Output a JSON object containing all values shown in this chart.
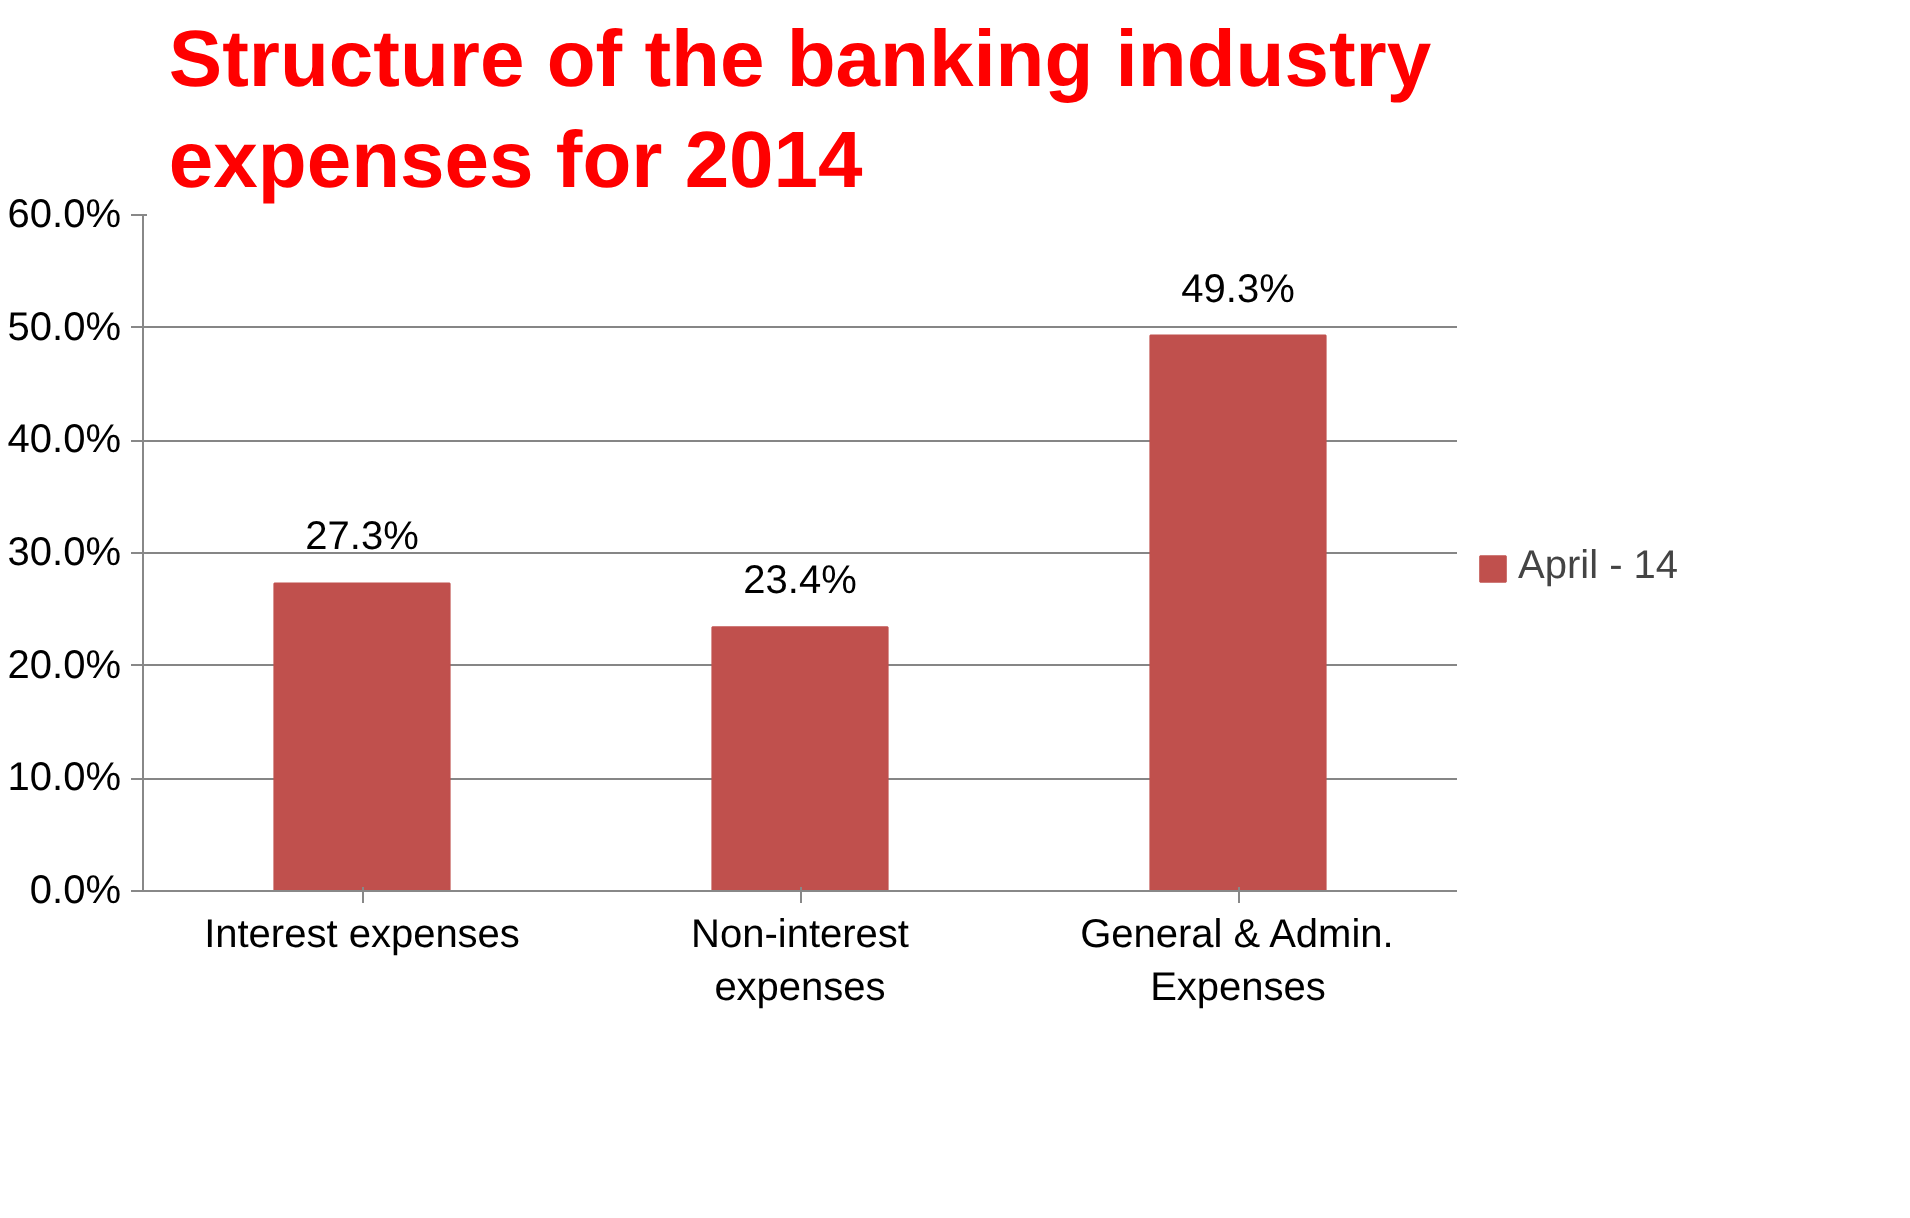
{
  "chart_data": {
    "type": "bar",
    "title": "Structure of the banking industry expenses for 2014",
    "categories": [
      "Interest expenses",
      "Non-interest expenses",
      "General & Admin. Expenses"
    ],
    "series": [
      {
        "name": "April - 14",
        "color": "#c0504d",
        "values": [
          27.3,
          23.4,
          49.3
        ],
        "value_labels": [
          "27.3%",
          "23.4%",
          "49.3%"
        ]
      }
    ],
    "ylim": [
      0,
      60
    ],
    "yticks": [
      {
        "value": 0,
        "label": "0.0%"
      },
      {
        "value": 10,
        "label": "10.0%"
      },
      {
        "value": 20,
        "label": "20.0%"
      },
      {
        "value": 30,
        "label": "30.0%"
      },
      {
        "value": 40,
        "label": "40.0%"
      },
      {
        "value": 50,
        "label": "50.0%"
      },
      {
        "value": 60,
        "label": "60.0%"
      }
    ],
    "grid": "y",
    "legend": "right"
  }
}
